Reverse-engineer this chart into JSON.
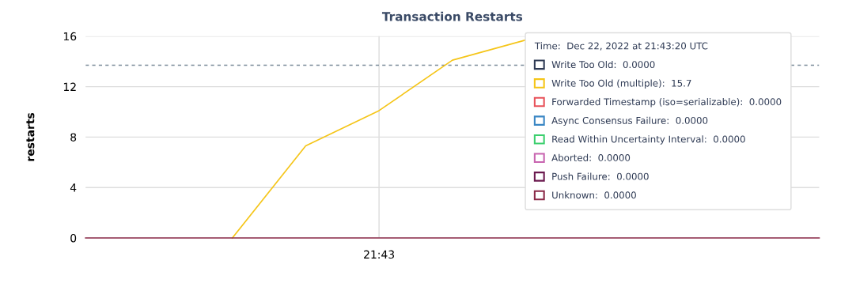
{
  "chart_data": {
    "type": "line",
    "title": "Transaction Restarts",
    "ylabel": "restarts",
    "categories": [
      null,
      null,
      null,
      null,
      null,
      null,
      null,
      null,
      null,
      null,
      null
    ],
    "series": [
      {
        "name": "Write Too Old:  0.0000",
        "color": "#2e3a54",
        "values": [
          null,
          null,
          null,
          null,
          null,
          null,
          null,
          null,
          null,
          null,
          null
        ]
      },
      {
        "name": "Write Too Old (multiple):  15.7",
        "color": "#f5c518",
        "values": [
          null,
          null,
          0,
          7.3,
          10.1,
          14.1,
          15.7,
          null,
          null,
          null,
          null
        ]
      },
      {
        "name": "Forwarded Timestamp (iso=serializable):  0.0000",
        "color": "#e8525a",
        "values": [
          null,
          null,
          null,
          null,
          null,
          null,
          null,
          null,
          null,
          null,
          null
        ]
      },
      {
        "name": "Async Consensus Failure:  0.0000",
        "color": "#3a86c4",
        "values": [
          null,
          null,
          null,
          null,
          null,
          null,
          null,
          null,
          null,
          null,
          null
        ]
      },
      {
        "name": "Read Within Uncertainty Interval:  0.0000",
        "color": "#3ccf6e",
        "values": [
          null,
          null,
          null,
          null,
          null,
          null,
          null,
          null,
          null,
          null,
          null
        ]
      },
      {
        "name": "Aborted:  0.0000",
        "color": "#c865b0",
        "values": [
          null,
          null,
          null,
          null,
          null,
          null,
          null,
          null,
          null,
          null,
          null
        ]
      },
      {
        "name": "Push Failure:  0.0000",
        "color": "#6b1a4f",
        "values": [
          null,
          null,
          null,
          null,
          null,
          null,
          null,
          null,
          null,
          null,
          null
        ]
      },
      {
        "name": "Unknown:  0.0000",
        "color": "#8b2a48",
        "values": [
          0,
          0,
          0,
          0,
          0,
          0,
          0,
          0,
          0,
          0,
          0
        ]
      }
    ],
    "legend_title": "Time:  Dec 22, 2022 at 21:43:20 UTC",
    "legend": "top right",
    "annotations": [
      "21:43"
    ],
    "ylim": [
      0,
      16
    ],
    "yticks": [
      0,
      4,
      8,
      12,
      16
    ],
    "grid": "y",
    "ref_lines": [
      {
        "axis": "y",
        "value": 13.7,
        "color": "#7a8a99",
        "line_style": "dashed"
      }
    ]
  }
}
